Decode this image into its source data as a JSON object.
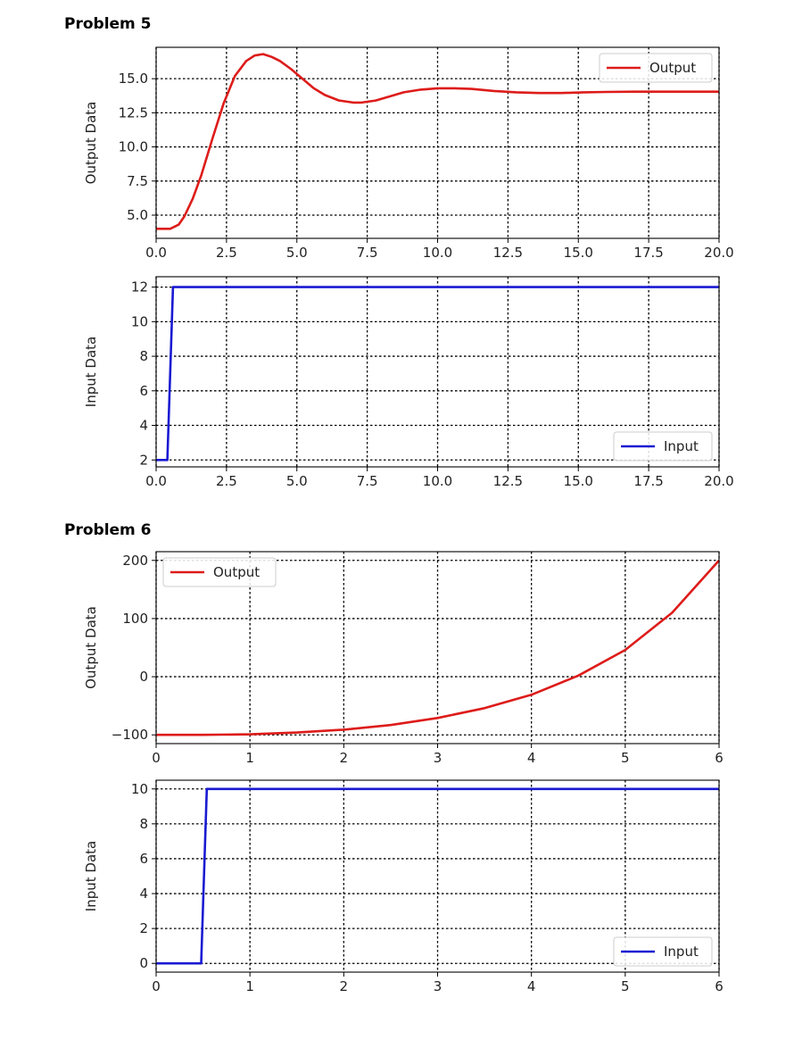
{
  "problems": [
    {
      "title": "Problem 5"
    },
    {
      "title": "Problem 6"
    }
  ],
  "colors": {
    "output": "#dd1c1a",
    "input": "#1a1ad2"
  },
  "chart_data": [
    {
      "type": "line",
      "xlim": [
        0,
        20
      ],
      "ylim": [
        3.3,
        17.3
      ],
      "xticks": [
        0,
        2.5,
        5,
        7.5,
        10,
        12.5,
        15,
        17.5,
        20
      ],
      "xtick_labels": [
        "0.0",
        "2.5",
        "5.0",
        "7.5",
        "10.0",
        "12.5",
        "15.0",
        "17.5",
        "20.0"
      ],
      "yticks": [
        5,
        7.5,
        10,
        12.5,
        15
      ],
      "ytick_labels": [
        "5.0",
        "7.5",
        "10.0",
        "12.5",
        "15.0"
      ],
      "xlabel": "",
      "ylabel": "Output Data",
      "grid": true,
      "legend_position": "upper right",
      "series": [
        {
          "name": "Output",
          "color": "#dd1c1a",
          "x": [
            0,
            0.3,
            0.5,
            0.8,
            1.0,
            1.3,
            1.6,
            2.0,
            2.4,
            2.8,
            3.2,
            3.5,
            3.8,
            4.1,
            4.4,
            4.8,
            5.2,
            5.6,
            6.0,
            6.5,
            7.0,
            7.3,
            7.8,
            8.3,
            8.8,
            9.4,
            10.0,
            10.6,
            11.2,
            12.0,
            12.8,
            13.6,
            14.4,
            15.2,
            16.0,
            17.0,
            18.0,
            19.0,
            20.0
          ],
          "y": [
            4.0,
            4.0,
            4.0,
            4.3,
            4.9,
            6.2,
            7.9,
            10.6,
            13.2,
            15.2,
            16.3,
            16.7,
            16.8,
            16.6,
            16.3,
            15.7,
            15.0,
            14.3,
            13.8,
            13.4,
            13.25,
            13.25,
            13.4,
            13.7,
            14.0,
            14.2,
            14.3,
            14.3,
            14.25,
            14.1,
            14.0,
            13.95,
            13.95,
            14.0,
            14.03,
            14.05,
            14.05,
            14.05,
            14.05
          ]
        }
      ]
    },
    {
      "type": "line",
      "xlim": [
        0,
        20
      ],
      "ylim": [
        1.6,
        12.6
      ],
      "xticks": [
        0,
        2.5,
        5,
        7.5,
        10,
        12.5,
        15,
        17.5,
        20
      ],
      "xtick_labels": [
        "0.0",
        "2.5",
        "5.0",
        "7.5",
        "10.0",
        "12.5",
        "15.0",
        "17.5",
        "20.0"
      ],
      "yticks": [
        2,
        4,
        6,
        8,
        10,
        12
      ],
      "ytick_labels": [
        "2",
        "4",
        "6",
        "8",
        "10",
        "12"
      ],
      "xlabel": "",
      "ylabel": "Input Data",
      "grid": true,
      "legend_position": "lower right",
      "series": [
        {
          "name": "Input",
          "color": "#1a1ad2",
          "x": [
            0,
            0.4,
            0.6,
            20
          ],
          "y": [
            2,
            2,
            12,
            12
          ]
        }
      ]
    },
    {
      "type": "line",
      "xlim": [
        0,
        6
      ],
      "ylim": [
        -115,
        215
      ],
      "xticks": [
        0,
        1,
        2,
        3,
        4,
        5,
        6
      ],
      "xtick_labels": [
        "0",
        "1",
        "2",
        "3",
        "4",
        "5",
        "6"
      ],
      "yticks": [
        -100,
        0,
        100,
        200
      ],
      "ytick_labels": [
        "−100",
        "0",
        "100",
        "200"
      ],
      "xlabel": "",
      "ylabel": "Output Data",
      "grid": true,
      "legend_position": "upper left",
      "series": [
        {
          "name": "Output",
          "color": "#dd1c1a",
          "x": [
            0,
            0.5,
            1.0,
            1.5,
            2.0,
            2.5,
            3.0,
            3.5,
            4.0,
            4.5,
            5.0,
            5.5,
            6.0
          ],
          "y": [
            -100,
            -100,
            -99,
            -96,
            -91,
            -83,
            -71,
            -54,
            -31,
            2,
            46,
            110,
            200
          ]
        }
      ]
    },
    {
      "type": "line",
      "xlim": [
        0,
        6
      ],
      "ylim": [
        -0.5,
        10.5
      ],
      "xticks": [
        0,
        1,
        2,
        3,
        4,
        5,
        6
      ],
      "xtick_labels": [
        "0",
        "1",
        "2",
        "3",
        "4",
        "5",
        "6"
      ],
      "yticks": [
        0,
        2,
        4,
        6,
        8,
        10
      ],
      "ytick_labels": [
        "0",
        "2",
        "4",
        "6",
        "8",
        "10"
      ],
      "xlabel": "",
      "ylabel": "Input Data",
      "grid": true,
      "legend_position": "lower right",
      "series": [
        {
          "name": "Input",
          "color": "#1a1ad2",
          "x": [
            0,
            0.48,
            0.54,
            6
          ],
          "y": [
            0,
            0,
            10,
            10
          ]
        }
      ]
    }
  ]
}
